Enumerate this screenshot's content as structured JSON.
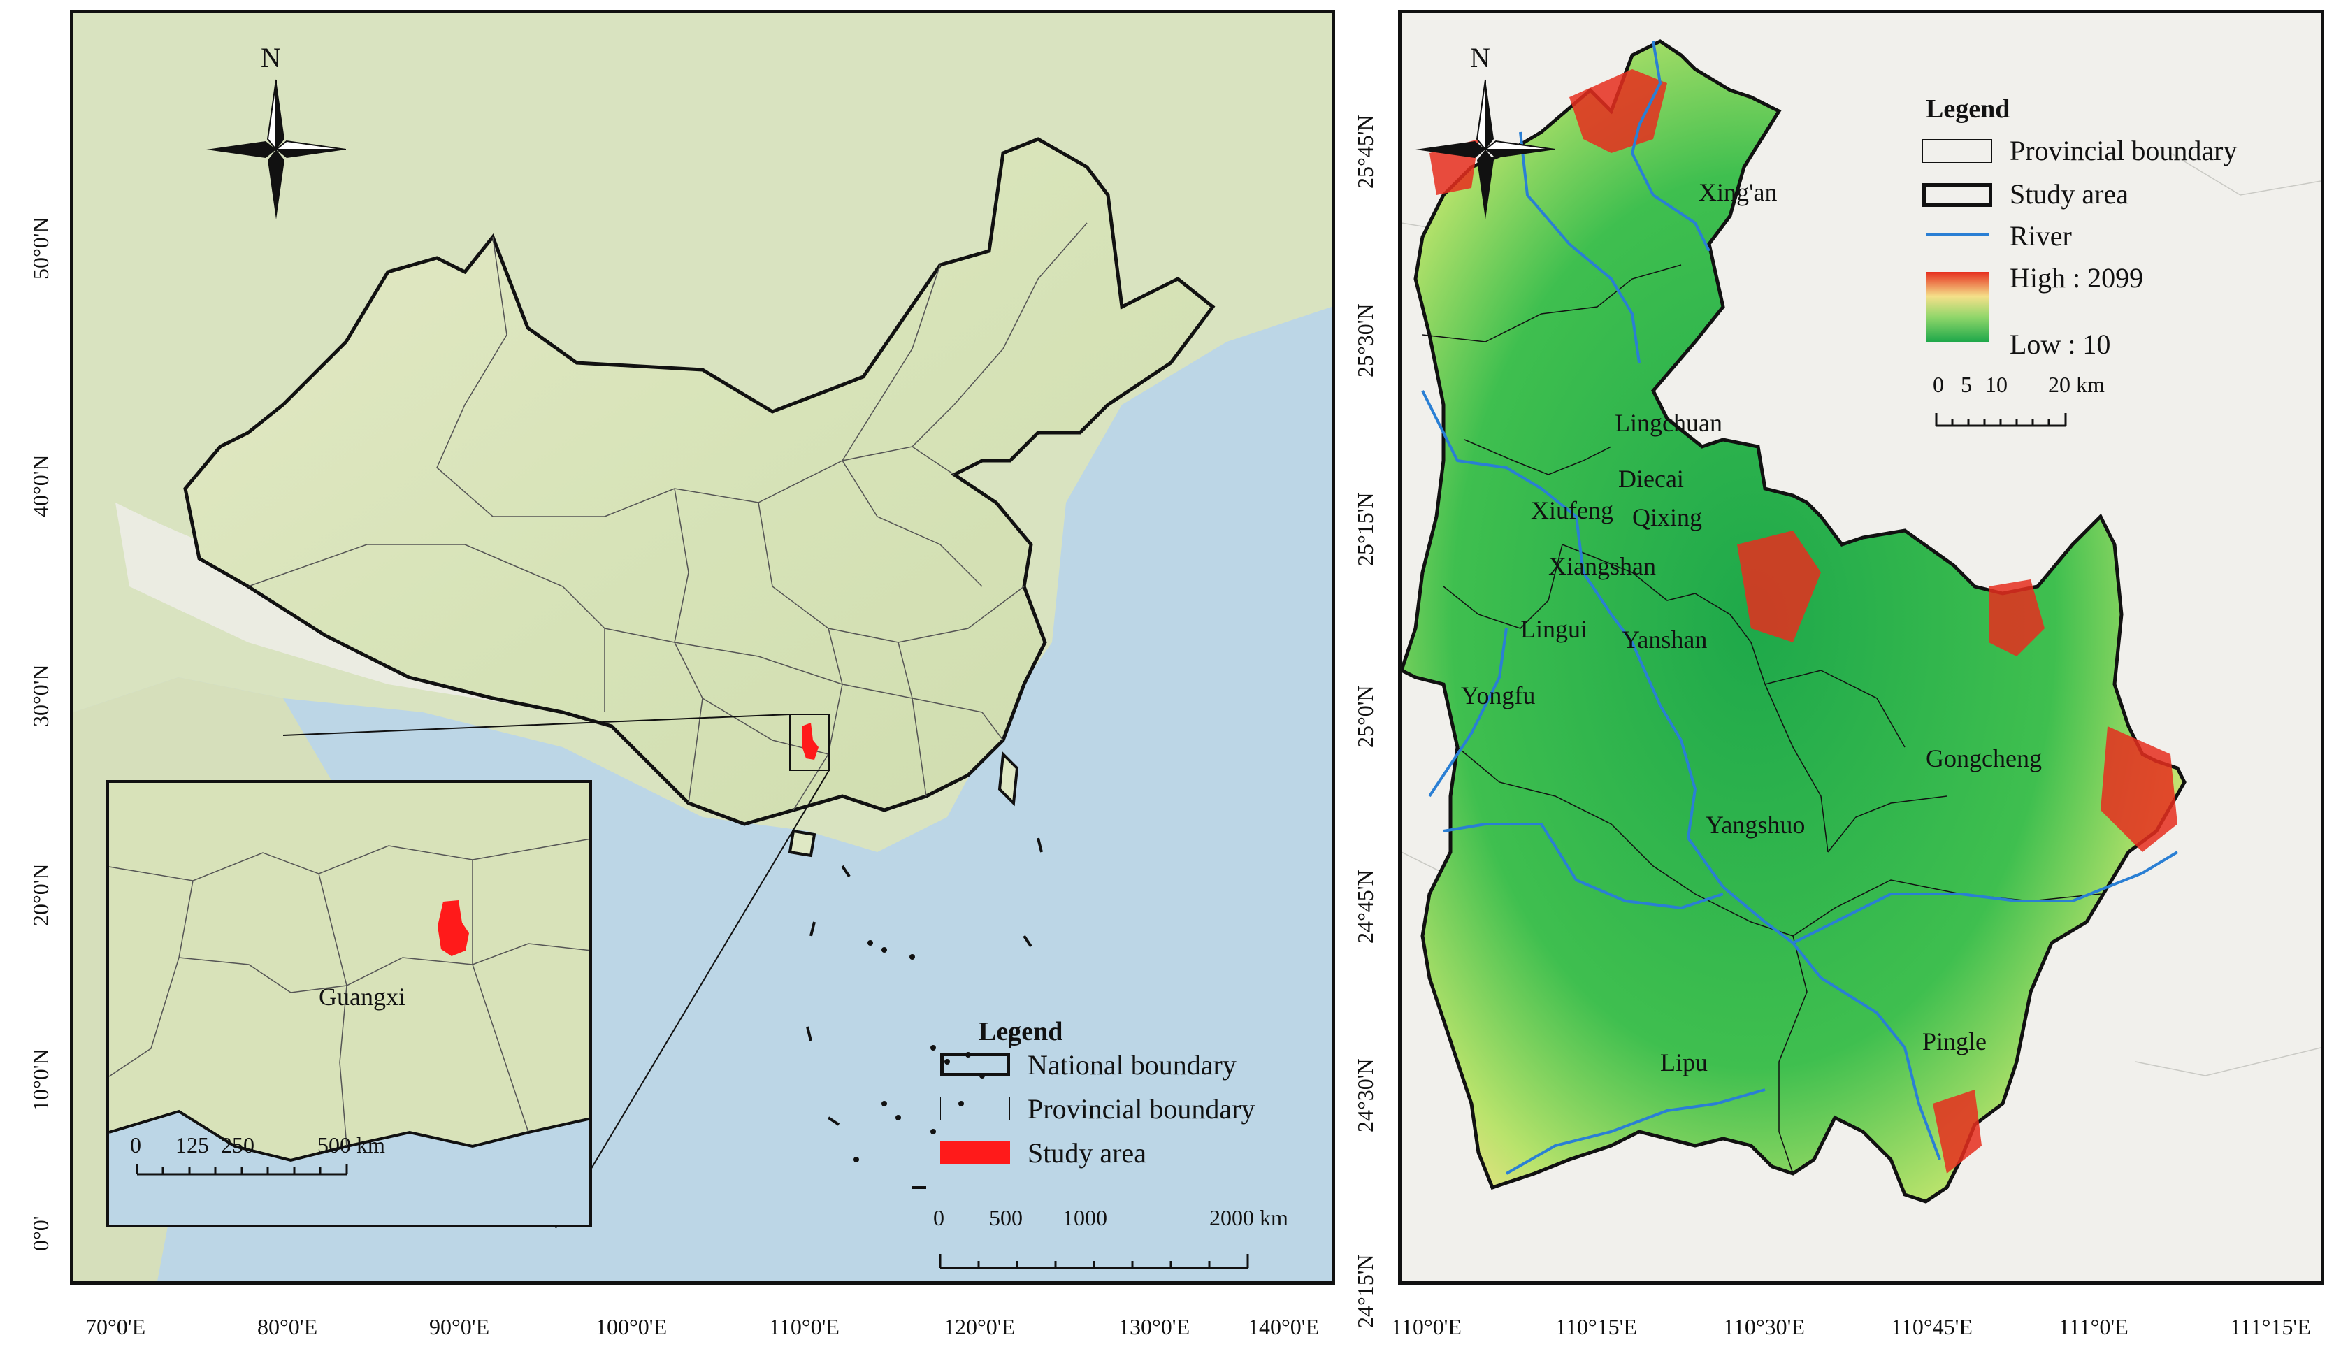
{
  "left_map": {
    "north_label": "N",
    "inset_label": "Guangxi",
    "legend": {
      "title": "Legend",
      "items": [
        {
          "label": "National boundary",
          "symbol": "thick-outline"
        },
        {
          "label": "Provincial boundary",
          "symbol": "thin-outline"
        },
        {
          "label": "Study area",
          "symbol": "red-fill"
        }
      ]
    },
    "scale_bar": [
      "0",
      "500",
      "1000",
      "2000 km"
    ],
    "inset_scale_bar": [
      "0",
      "125",
      "250",
      "500 km"
    ],
    "lon_ticks": [
      "70°0'E",
      "80°0'E",
      "90°0'E",
      "100°0'E",
      "110°0'E",
      "120°0'E",
      "130°0'E",
      "140°0'E"
    ],
    "lat_ticks": [
      "50°0'N",
      "40°0'N",
      "30°0'N",
      "20°0'N",
      "10°0'N",
      "0°0'"
    ]
  },
  "right_map": {
    "north_label": "N",
    "legend": {
      "title": "Legend",
      "items": [
        {
          "label": "Provincial boundary",
          "symbol": "thin-outline"
        },
        {
          "label": "Study area",
          "symbol": "thick-outline"
        },
        {
          "label": "River",
          "symbol": "blue-line"
        }
      ],
      "elevation_high": "High : 2099",
      "elevation_low": "Low : 10"
    },
    "scale_bar": [
      "0",
      "5",
      "10",
      "20 km"
    ],
    "places": [
      "Xing'an",
      "Lingchuan",
      "Diecai",
      "Xiufeng",
      "Qixing",
      "Xiangshan",
      "Lingui",
      "Yanshan",
      "Yongfu",
      "Gongcheng",
      "Yangshuo",
      "Lipu",
      "Pingle"
    ],
    "lon_ticks": [
      "110°0'E",
      "110°15'E",
      "110°30'E",
      "110°45'E",
      "111°0'E",
      "111°15'E"
    ],
    "lat_ticks": [
      "25°45'N",
      "25°30'N",
      "25°15'N",
      "25°0'N",
      "24°45'N",
      "24°30'N",
      "24°15'N"
    ]
  },
  "colors": {
    "study_area": "#ff1a1a",
    "river": "#2a7fd4",
    "elev_high": "#e62e1e",
    "elev_mid": "#f5e08a",
    "elev_low": "#1ea84a",
    "ocean": "#bcd6e6",
    "land": "#dfe8c4"
  }
}
